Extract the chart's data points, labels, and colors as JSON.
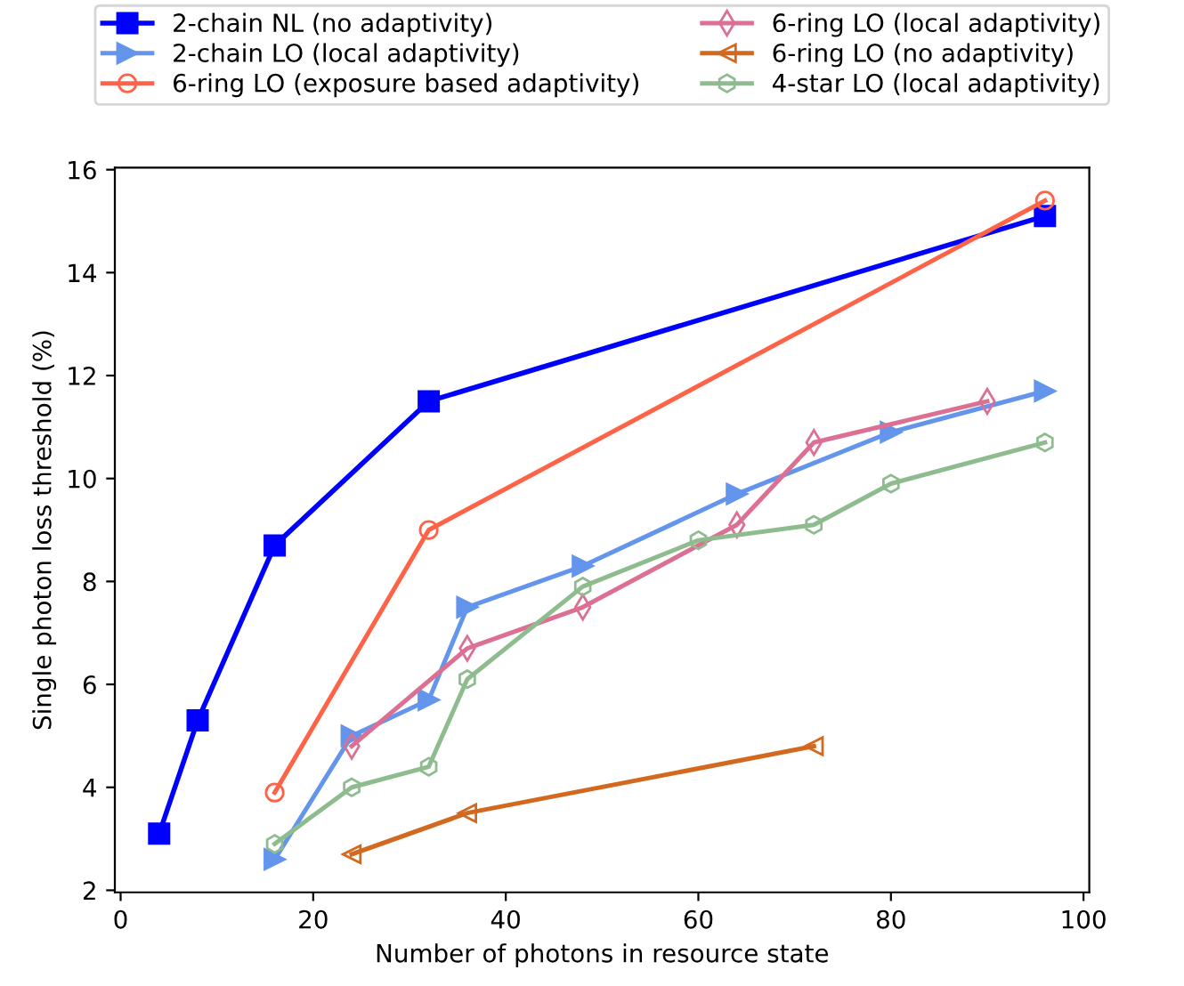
{
  "chart_data": {
    "type": "line",
    "xlabel": "Number of photons in resource state",
    "ylabel": "Single photon loss threshold (%)",
    "xlim": [
      -0.6,
      100.6
    ],
    "xticks": [
      0,
      20,
      40,
      60,
      80,
      100
    ],
    "ylim": [
      1.96,
      16.04
    ],
    "yticks": [
      2,
      4,
      6,
      8,
      10,
      12,
      14,
      16
    ],
    "grid": false,
    "legend": "top",
    "series": [
      {
        "name": "2-chain NL (no adaptivity)",
        "color": "#0000ff",
        "marker": "square",
        "x": [
          4,
          8,
          16,
          32,
          96
        ],
        "values": [
          3.1,
          5.3,
          8.7,
          11.5,
          15.1
        ]
      },
      {
        "name": "2-chain LO (local adaptivity)",
        "color": "#6495ed",
        "marker": "triangle",
        "x": [
          16,
          24,
          32,
          36,
          48,
          64,
          80,
          96
        ],
        "values": [
          2.6,
          5.0,
          5.7,
          7.5,
          8.3,
          9.7,
          10.9,
          11.7
        ]
      },
      {
        "name": "6-ring LO (exposure based adaptivity)",
        "color": "#ff6347",
        "marker": "circle",
        "x": [
          16,
          32,
          96
        ],
        "values": [
          3.9,
          9.0,
          15.4
        ]
      },
      {
        "name": "6-ring LO (local adaptivity)",
        "color": "#db7093",
        "marker": "diamond",
        "x": [
          24,
          36,
          48,
          64,
          72,
          90
        ],
        "values": [
          4.8,
          6.7,
          7.5,
          9.1,
          10.7,
          11.5
        ]
      },
      {
        "name": "6-ring LO (no adaptivity)",
        "color": "#d2691e",
        "marker": "triangle",
        "x": [
          24,
          36,
          72
        ],
        "values": [
          2.7,
          3.5,
          4.8
        ]
      },
      {
        "name": "4-star LO (local adaptivity)",
        "color": "#8fbc8f",
        "marker": "circle",
        "x": [
          16,
          24,
          32,
          36,
          48,
          60,
          72,
          80,
          96
        ],
        "values": [
          2.9,
          4.0,
          4.4,
          6.1,
          7.9,
          8.8,
          9.1,
          9.9,
          10.7
        ]
      }
    ]
  }
}
